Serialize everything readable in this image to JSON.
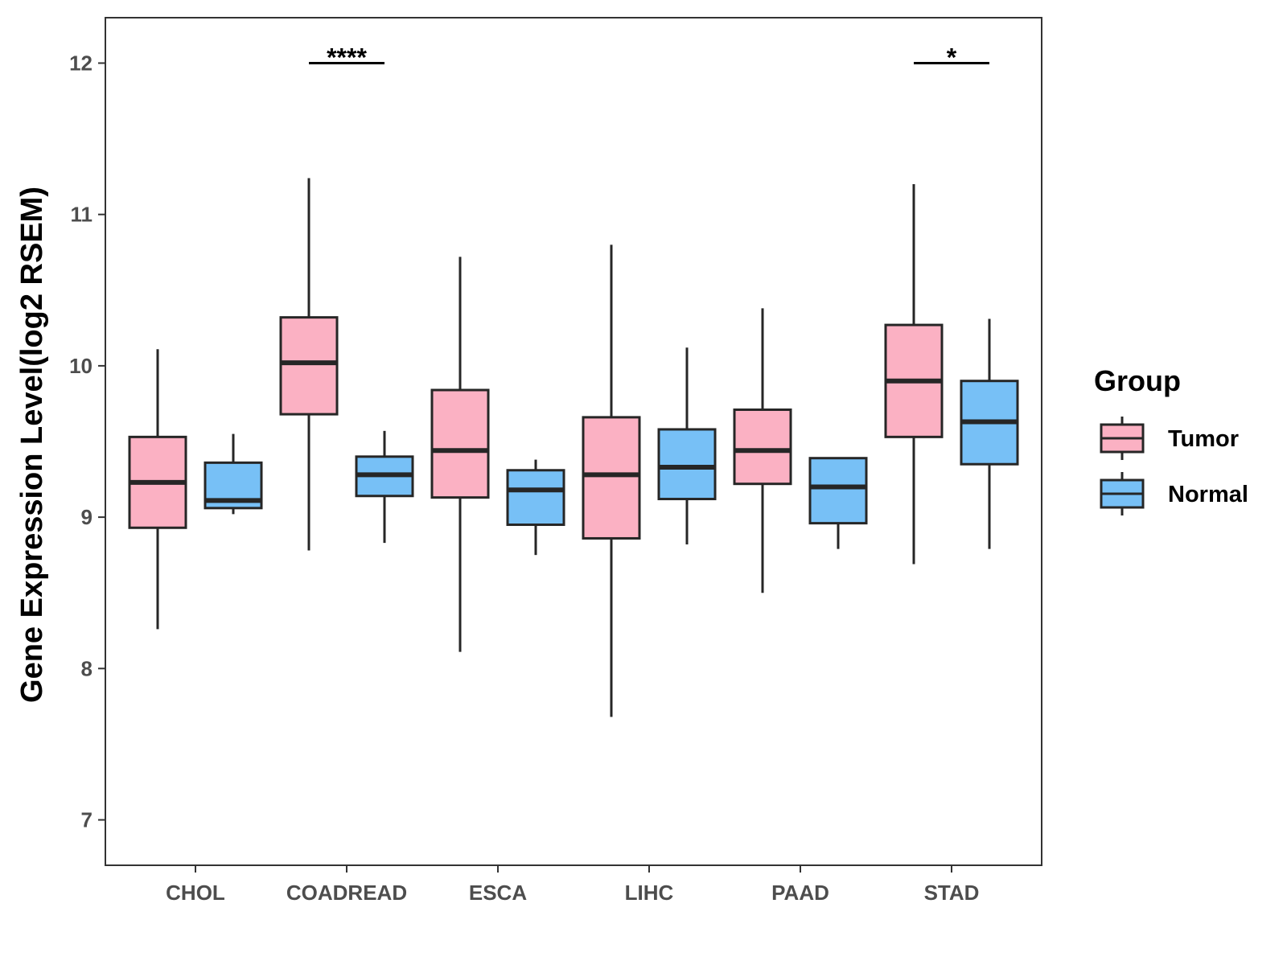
{
  "chart_data": {
    "type": "boxplot",
    "title": "",
    "xlabel": "",
    "ylabel": "Gene Expression Level(log2 RSEM)",
    "ylim": [
      6.7,
      12.3
    ],
    "yticks": [
      7,
      8,
      9,
      10,
      11,
      12
    ],
    "grid": false,
    "categories": [
      "CHOL",
      "COADREAD",
      "ESCA",
      "LIHC",
      "PAAD",
      "STAD"
    ],
    "series": [
      {
        "name": "Tumor",
        "color": "#FBB1C3",
        "boxes": [
          {
            "whisker_low": 8.26,
            "q1": 8.93,
            "median": 9.23,
            "q3": 9.53,
            "whisker_high": 10.11
          },
          {
            "whisker_low": 8.78,
            "q1": 9.68,
            "median": 10.02,
            "q3": 10.32,
            "whisker_high": 11.24
          },
          {
            "whisker_low": 8.11,
            "q1": 9.13,
            "median": 9.44,
            "q3": 9.84,
            "whisker_high": 10.72
          },
          {
            "whisker_low": 7.68,
            "q1": 8.86,
            "median": 9.28,
            "q3": 9.66,
            "whisker_high": 10.8
          },
          {
            "whisker_low": 8.5,
            "q1": 9.22,
            "median": 9.44,
            "q3": 9.71,
            "whisker_high": 10.38
          },
          {
            "whisker_low": 8.69,
            "q1": 9.53,
            "median": 9.9,
            "q3": 10.27,
            "whisker_high": 11.2
          }
        ]
      },
      {
        "name": "Normal",
        "color": "#77C0F6",
        "boxes": [
          {
            "whisker_low": 9.02,
            "q1": 9.06,
            "median": 9.11,
            "q3": 9.36,
            "whisker_high": 9.55
          },
          {
            "whisker_low": 8.83,
            "q1": 9.14,
            "median": 9.28,
            "q3": 9.4,
            "whisker_high": 9.57
          },
          {
            "whisker_low": 8.75,
            "q1": 8.95,
            "median": 9.18,
            "q3": 9.31,
            "whisker_high": 9.38
          },
          {
            "whisker_low": 8.82,
            "q1": 9.12,
            "median": 9.33,
            "q3": 9.58,
            "whisker_high": 10.12
          },
          {
            "whisker_low": 8.79,
            "q1": 8.96,
            "median": 9.2,
            "q3": 9.39,
            "whisker_high": 9.39
          },
          {
            "whisker_low": 8.79,
            "q1": 9.35,
            "median": 9.63,
            "q3": 9.9,
            "whisker_high": 10.31
          }
        ]
      }
    ],
    "significance": [
      {
        "category": "COADREAD",
        "label": "****",
        "y": 12.0
      },
      {
        "category": "STAD",
        "label": "*",
        "y": 12.0
      }
    ],
    "legend": {
      "title": "Group",
      "position": "right",
      "entries": [
        "Tumor",
        "Normal"
      ]
    }
  }
}
